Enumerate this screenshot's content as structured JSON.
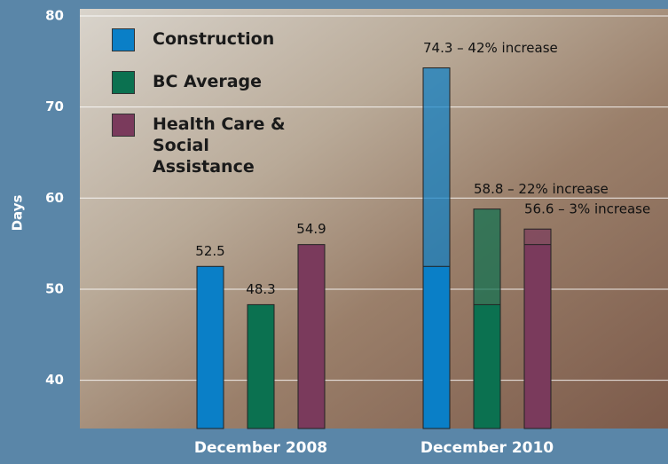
{
  "chart_data": {
    "type": "bar",
    "y_label": "Days",
    "categories": [
      "December 2008",
      "December 2010"
    ],
    "series": [
      {
        "name": "Construction",
        "color": "#0a7fc7",
        "values": [
          52.5,
          74.3
        ],
        "value_labels": [
          "52.5",
          "74.3 – 42% increase"
        ]
      },
      {
        "name": "BC Average",
        "color": "#0b7150",
        "values": [
          48.3,
          58.8
        ],
        "value_labels": [
          "48.3",
          "58.8 – 22% increase"
        ]
      },
      {
        "name": "Health Care & Social Assistance",
        "color": "#7a3a5c",
        "values": [
          54.9,
          56.6
        ],
        "value_labels": [
          "54.9",
          "56.6 – 3% increase"
        ]
      }
    ],
    "ylim": [
      34.7,
      80
    ],
    "yticks": [
      40,
      50,
      60,
      70,
      80
    ],
    "grid": true
  }
}
